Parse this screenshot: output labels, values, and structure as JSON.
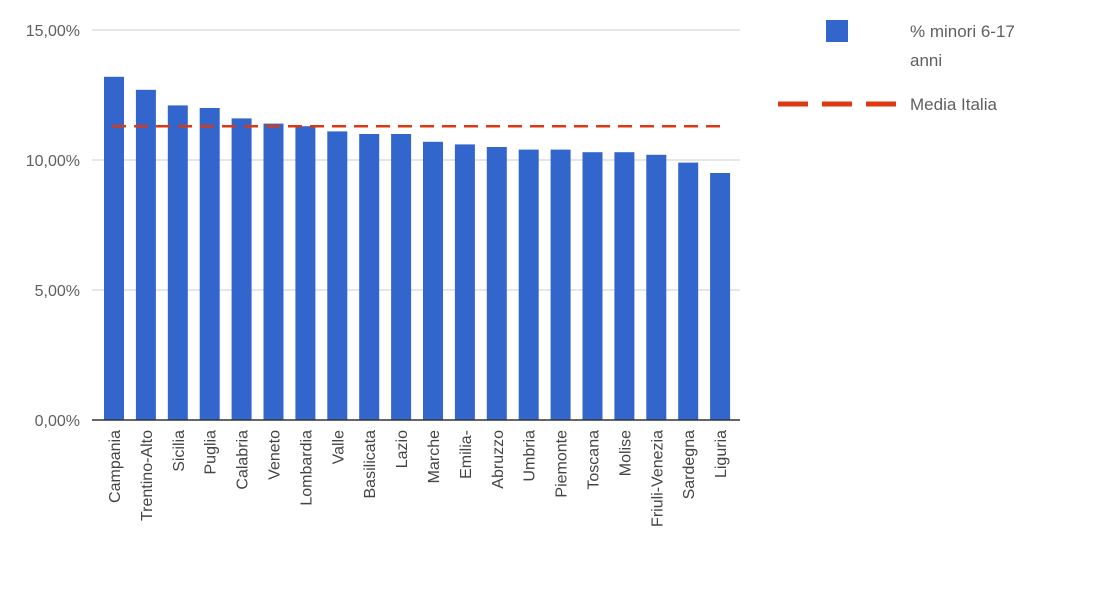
{
  "chart_data": {
    "type": "bar",
    "categories": [
      "Campania",
      "Trentino-Alto",
      "Sicilia",
      "Puglia",
      "Calabria",
      "Veneto",
      "Lombardia",
      "Valle",
      "Basilicata",
      "Lazio",
      "Marche",
      "Emilia-",
      "Abruzzo",
      "Umbria",
      "Piemonte",
      "Toscana",
      "Molise",
      "Friuli-Venezia",
      "Sardegna",
      "Liguria"
    ],
    "series": [
      {
        "name": "% minori 6-17 anni",
        "color": "#3366cc",
        "values": [
          13.2,
          12.7,
          12.1,
          12.0,
          11.6,
          11.4,
          11.3,
          11.1,
          11.0,
          11.0,
          10.7,
          10.6,
          10.5,
          10.4,
          10.4,
          10.3,
          10.3,
          10.2,
          9.9,
          9.5
        ]
      }
    ],
    "reference_line": {
      "name": "Media Italia",
      "value": 11.3,
      "color": "#dc3912",
      "style": "dashed"
    },
    "yticks": [
      "0,00%",
      "5,00%",
      "10,00%",
      "15,00%"
    ],
    "ytick_values": [
      0,
      5,
      10,
      15
    ],
    "ylim": [
      0,
      15
    ],
    "grid": true,
    "legend_position": "right",
    "legend": {
      "bar_label_line1": "% minori 6-17",
      "bar_label_line2": "anni",
      "line_label": "Media Italia"
    }
  }
}
